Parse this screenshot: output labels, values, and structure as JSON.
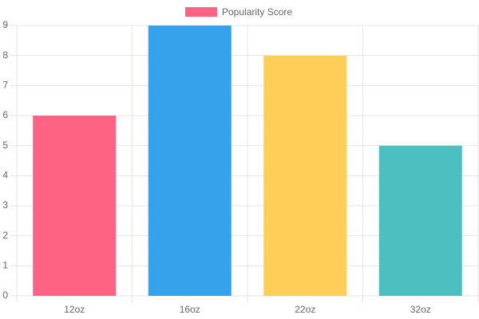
{
  "chart_data": {
    "type": "bar",
    "categories": [
      "12oz",
      "16oz",
      "22oz",
      "32oz"
    ],
    "series": [
      {
        "name": "Popularity Score",
        "color": "#ff6384",
        "colors": [
          "#ff6384",
          "#36a2eb",
          "#ffce56",
          "#4bc0c0"
        ],
        "values": [
          6,
          9,
          8,
          5
        ]
      }
    ],
    "ylim": [
      0,
      9
    ],
    "yticks": [
      0,
      1,
      2,
      3,
      4,
      5,
      6,
      7,
      8,
      9
    ],
    "grid": true
  }
}
